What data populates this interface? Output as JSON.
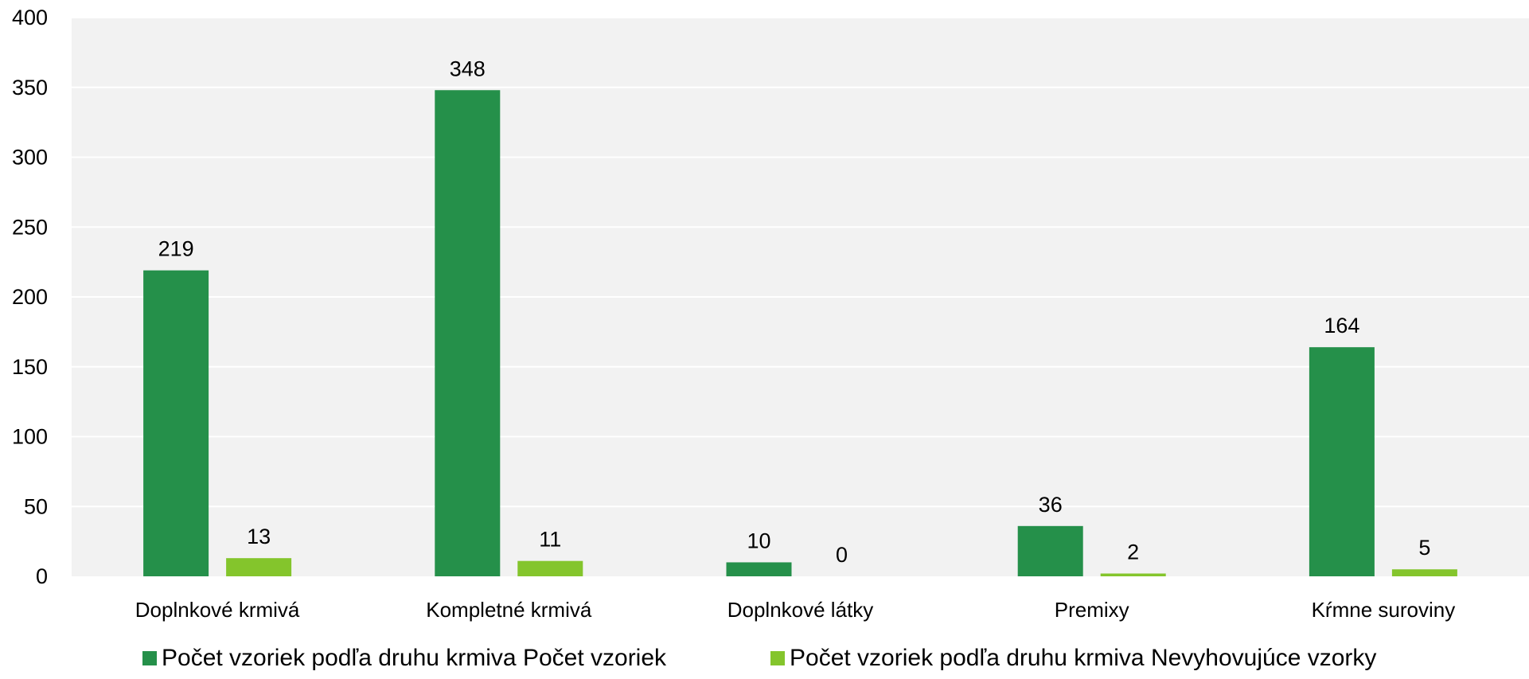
{
  "chart_data": {
    "type": "bar",
    "categories": [
      "Doplnkové krmivá",
      "Kompletné krmivá",
      "Doplnkové látky",
      "Premixy",
      "Kŕmne suroviny"
    ],
    "series": [
      {
        "name": "Počet vzoriek podľa druhu krmiva Počet vzoriek",
        "values": [
          219,
          348,
          10,
          36,
          164
        ],
        "color": "#25904a"
      },
      {
        "name": "Počet vzoriek podľa druhu krmiva Nevyhovujúce vzorky",
        "values": [
          13,
          11,
          0,
          2,
          5
        ],
        "color": "#84c52c"
      }
    ],
    "yticks": [
      "0",
      "50",
      "100",
      "150",
      "200",
      "250",
      "300",
      "350",
      "400"
    ],
    "ylim": [
      0,
      400
    ],
    "grid": true,
    "legend": "bottom",
    "plot_background": "#f2f2f2",
    "gridline_color": "#ffffff"
  }
}
